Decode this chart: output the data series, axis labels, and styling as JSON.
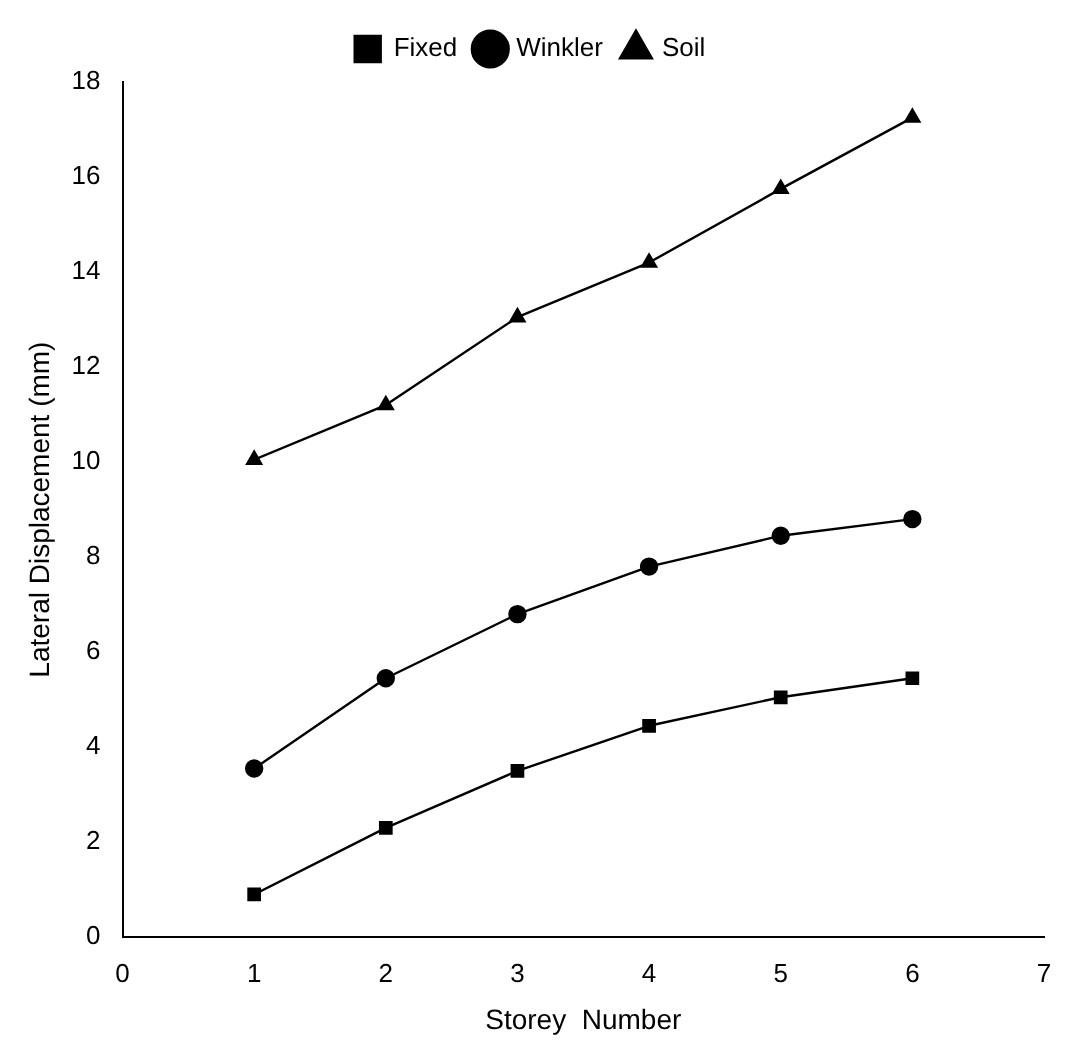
{
  "chart_data": {
    "type": "line",
    "xlabel": "Storey  Number",
    "ylabel": "Lateral Displacement (mm)",
    "x": [
      1,
      2,
      3,
      4,
      5,
      6
    ],
    "xlim": [
      0,
      7
    ],
    "xticks": [
      0,
      1,
      2,
      3,
      4,
      5,
      6,
      7
    ],
    "ylim": [
      0,
      18
    ],
    "yticks": [
      0,
      2,
      4,
      6,
      8,
      10,
      12,
      14,
      16,
      18
    ],
    "grid": false,
    "legend": "top",
    "line_style": "solid",
    "series": [
      {
        "name": "Fixed",
        "color": "#000000",
        "marker": "square",
        "values": [
          0.9,
          2.3,
          3.5,
          4.45,
          5.05,
          5.45
        ]
      },
      {
        "name": "Winkler",
        "color": "#000000",
        "marker": "circle",
        "values": [
          3.55,
          5.45,
          6.8,
          7.8,
          8.45,
          8.8
        ]
      },
      {
        "name": "Soil",
        "color": "#000000",
        "marker": "triangle",
        "values": [
          10.05,
          11.2,
          13.05,
          14.2,
          15.75,
          17.25
        ]
      }
    ]
  }
}
